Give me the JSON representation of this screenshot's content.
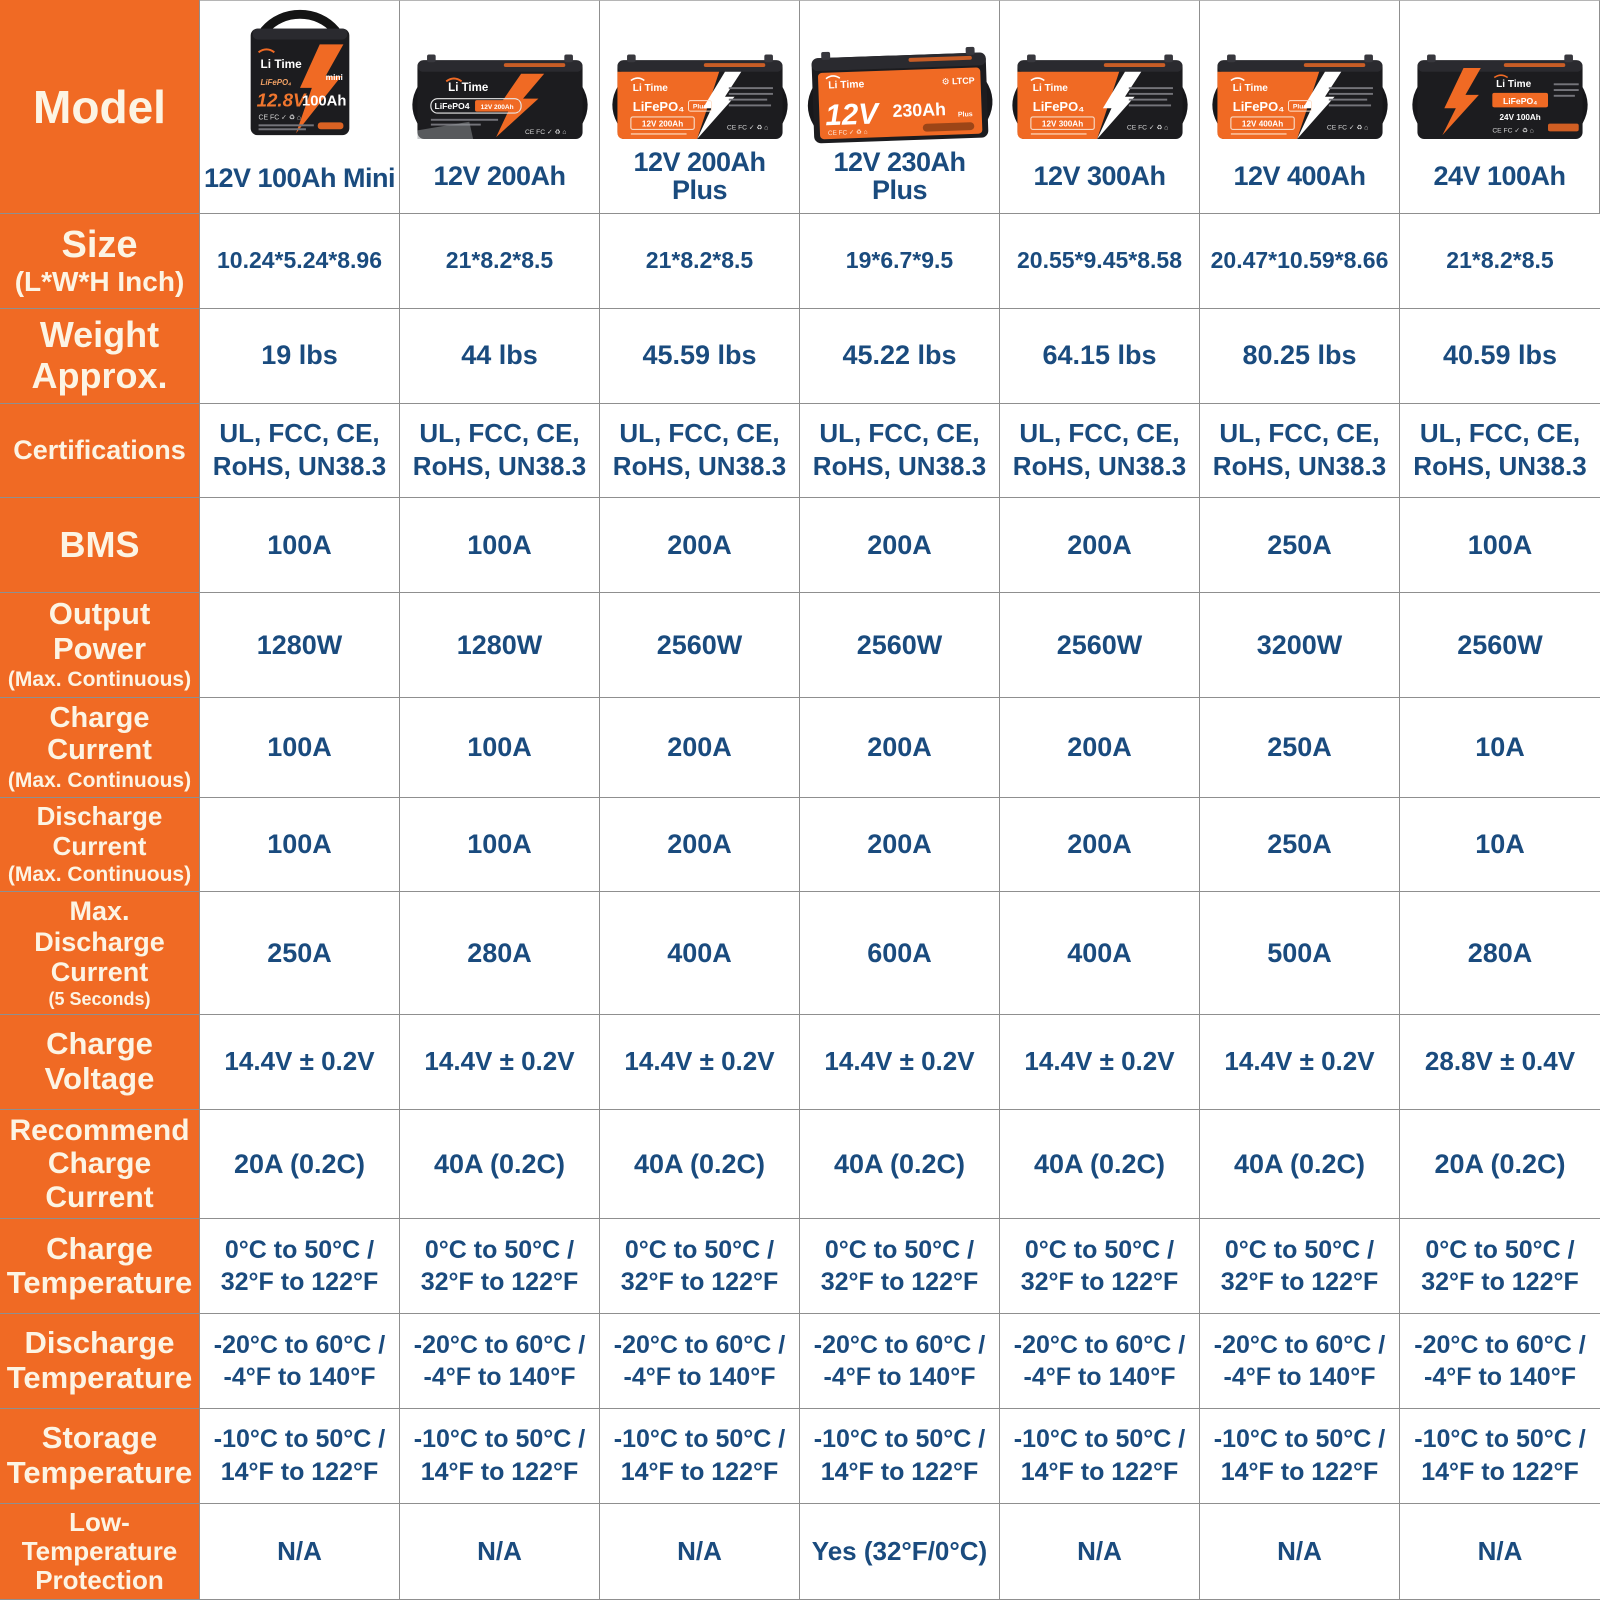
{
  "colors": {
    "accent_orange": "#F06A24",
    "value_navy": "#1A4B7E",
    "label_cream": "#FCF4E4",
    "grid_border": "#8F8F8F",
    "battery_black": "#1C1C1F"
  },
  "corner": {
    "label": "Model"
  },
  "products": [
    {
      "name": "12V 100Ah Mini",
      "img": {
        "brand": "Li Time",
        "tag": "mini",
        "chem": "LiFePO₄",
        "volt": "12.8V",
        "cap": "100Ah",
        "certs": "CE FC ✓ ♻ ⌂"
      }
    },
    {
      "name": "12V 200Ah",
      "img": {
        "brand": "Li Time",
        "pill_left": "LiFePO4",
        "pill_right": "12V 200Ah",
        "certs": "CE FC ✓ ♻ ⌂"
      }
    },
    {
      "name": "12V 200Ah",
      "name2": "Plus",
      "img": {
        "brand": "Li Time",
        "chem": "LiFePO₄",
        "tag": "Plus",
        "badge": "12V  200Ah",
        "certs": "CE FC ✓ ♻ ⌂"
      }
    },
    {
      "name": "12V 230Ah",
      "name2": "Plus",
      "img": {
        "brand": "Li Time",
        "volt": "12V",
        "cap": "230Ah",
        "tag": "Plus",
        "logo": "⚙ LTCP",
        "certs": "CE FC ✓ ♻ ⌂"
      }
    },
    {
      "name": "12V 300Ah",
      "img": {
        "brand": "Li Time",
        "chem": "LiFePO₄",
        "badge": "12V  300Ah",
        "certs": "CE FC ✓ ♻ ⌂"
      }
    },
    {
      "name": "12V 400Ah",
      "img": {
        "brand": "Li Time",
        "chem": "LiFePO₄",
        "tag": "Plus",
        "badge": "12V  400Ah",
        "certs": "CE FC ✓ ♻ ⌂"
      }
    },
    {
      "name": "24V 100Ah",
      "img": {
        "brand": "Li Time",
        "chem": "LiFePO₄",
        "badge": "24V 100Ah",
        "certs": "CE FC ✓ ♻ ⌂"
      }
    }
  ],
  "rows": [
    {
      "label": "Size",
      "sublabel": "(L*W*H Inch)",
      "values": [
        "10.24*5.24*8.96",
        "21*8.2*8.5",
        "21*8.2*8.5",
        "19*6.7*9.5",
        "20.55*9.45*8.58",
        "20.47*10.59*8.66",
        "21*8.2*8.5"
      ]
    },
    {
      "label": "Weight\nApprox.",
      "sublabel": "",
      "values": [
        "19 lbs",
        "44 lbs",
        "45.59 lbs",
        "45.22 lbs",
        "64.15 lbs",
        "80.25 lbs",
        "40.59 lbs"
      ]
    },
    {
      "label": "Certifications",
      "sublabel": "",
      "values": [
        "UL, FCC, CE,\nRoHS, UN38.3",
        "UL, FCC, CE,\nRoHS, UN38.3",
        "UL, FCC, CE,\nRoHS, UN38.3",
        "UL, FCC, CE,\nRoHS, UN38.3",
        "UL, FCC, CE,\nRoHS, UN38.3",
        "UL, FCC, CE,\nRoHS, UN38.3",
        "UL, FCC, CE,\nRoHS, UN38.3"
      ]
    },
    {
      "label": "BMS",
      "sublabel": "",
      "values": [
        "100A",
        "100A",
        "200A",
        "200A",
        "200A",
        "250A",
        "100A"
      ]
    },
    {
      "label": "Output Power",
      "sublabel": "(Max. Continuous)",
      "values": [
        "1280W",
        "1280W",
        "2560W",
        "2560W",
        "2560W",
        "3200W",
        "2560W"
      ]
    },
    {
      "label": "Charge Current",
      "sublabel": "(Max. Continuous)",
      "values": [
        "100A",
        "100A",
        "200A",
        "200A",
        "200A",
        "250A",
        "10A"
      ]
    },
    {
      "label": "Discharge Current",
      "sublabel": "(Max. Continuous)",
      "values": [
        "100A",
        "100A",
        "200A",
        "200A",
        "200A",
        "250A",
        "10A"
      ]
    },
    {
      "label": "Max.\nDischarge Current",
      "sublabel": "(5 Seconds)",
      "values": [
        "250A",
        "280A",
        "400A",
        "600A",
        "400A",
        "500A",
        "280A"
      ]
    },
    {
      "label": "Charge Voltage",
      "sublabel": "",
      "values": [
        "14.4V ± 0.2V",
        "14.4V ± 0.2V",
        "14.4V ± 0.2V",
        "14.4V ± 0.2V",
        "14.4V ± 0.2V",
        "14.4V ± 0.2V",
        "28.8V ± 0.4V"
      ]
    },
    {
      "label": "Recommend\nCharge Current",
      "sublabel": "",
      "values": [
        "20A (0.2C)",
        "40A (0.2C)",
        "40A (0.2C)",
        "40A (0.2C)",
        "40A (0.2C)",
        "40A (0.2C)",
        "20A (0.2C)"
      ]
    },
    {
      "label": "Charge\nTemperature",
      "sublabel": "",
      "values": [
        "0°C to 50°C /\n32°F to 122°F",
        "0°C to 50°C /\n32°F to 122°F",
        "0°C to 50°C /\n32°F to 122°F",
        "0°C to 50°C /\n32°F to 122°F",
        "0°C to 50°C /\n32°F to 122°F",
        "0°C to 50°C /\n32°F to 122°F",
        "0°C to 50°C /\n32°F to 122°F"
      ]
    },
    {
      "label": "Discharge\nTemperature",
      "sublabel": "",
      "values": [
        "-20°C to 60°C /\n-4°F to 140°F",
        "-20°C to 60°C /\n-4°F to 140°F",
        "-20°C to 60°C /\n-4°F to 140°F",
        "-20°C to 60°C /\n-4°F to 140°F",
        "-20°C to 60°C /\n-4°F to 140°F",
        "-20°C to 60°C /\n-4°F to 140°F",
        "-20°C to 60°C /\n-4°F to 140°F"
      ]
    },
    {
      "label": "Storage\nTemperature",
      "sublabel": "",
      "values": [
        "-10°C to 50°C /\n14°F to 122°F",
        "-10°C to 50°C /\n14°F to 122°F",
        "-10°C to 50°C /\n14°F to 122°F",
        "-10°C to 50°C /\n14°F to 122°F",
        "-10°C to 50°C /\n14°F to 122°F",
        "-10°C to 50°C /\n14°F to 122°F",
        "-10°C to 50°C /\n14°F to 122°F"
      ]
    },
    {
      "label": "Low-Temperature\nProtection",
      "sublabel": "",
      "values": [
        "N/A",
        "N/A",
        "N/A",
        "Yes (32°F/0°C)",
        "N/A",
        "N/A",
        "N/A"
      ]
    }
  ]
}
